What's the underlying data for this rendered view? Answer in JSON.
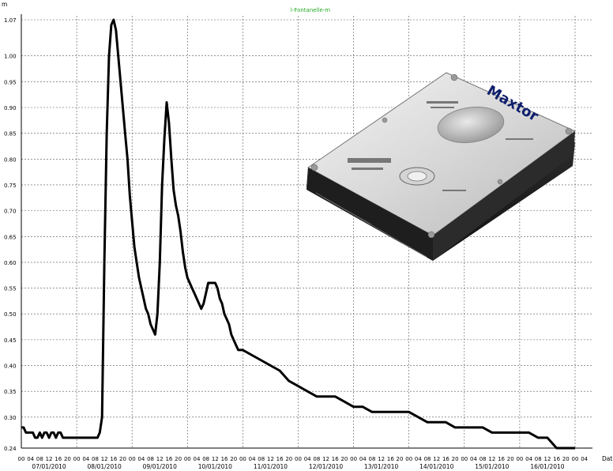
{
  "chart_data": {
    "type": "line",
    "title": "l-Fontanelle-m",
    "ylabel": "m",
    "xlabel": "Dat",
    "ylim": [
      0.24,
      1.07
    ],
    "yticks": [
      0.24,
      0.3,
      0.35,
      0.4,
      0.45,
      0.5,
      0.55,
      0.6,
      0.65,
      0.7,
      0.75,
      0.8,
      0.85,
      0.9,
      0.95,
      1.0,
      1.07
    ],
    "ytick_labels": [
      "0.24",
      "0.30",
      "0.35",
      "0.40",
      "0.45",
      "0.50",
      "0.55",
      "0.60",
      "0.65",
      "0.70",
      "0.75",
      "0.80",
      "0.85",
      "0.90",
      "0.95",
      "1.00",
      "1.07"
    ],
    "xlim_hours": [
      0,
      240
    ],
    "hour_tick_labels": [
      "00",
      "04",
      "08",
      "12",
      "16",
      "20",
      "00",
      "04",
      "08",
      "12",
      "16",
      "20",
      "00",
      "04",
      "08",
      "12",
      "16",
      "20",
      "00",
      "04",
      "08",
      "12",
      "16",
      "20",
      "00",
      "04",
      "08",
      "12",
      "16",
      "20",
      "00",
      "04",
      "08",
      "12",
      "16",
      "20",
      "00",
      "04",
      "08",
      "12",
      "16",
      "20",
      "00",
      "04",
      "08",
      "12",
      "16",
      "20",
      "00",
      "04",
      "08",
      "12",
      "16",
      "20",
      "00",
      "04",
      "08",
      "12",
      "16",
      "20",
      "00",
      "04",
      "08",
      "12",
      "16",
      "20"
    ],
    "date_labels": [
      "07/01/2010",
      "08/01/2010",
      "09/01/2010",
      "10/01/2010",
      "11/01/2010",
      "12/01/2010",
      "13/01/2010",
      "14/01/2010",
      "15/01/2010",
      "16/01/2010"
    ],
    "grid": true,
    "series": [
      {
        "color": "#000000",
        "x_hours": [
          0,
          1,
          2,
          3,
          4,
          5,
          6,
          7,
          8,
          9,
          10,
          11,
          12,
          13,
          14,
          15,
          16,
          17,
          18,
          19,
          20,
          21,
          22,
          23,
          24,
          25,
          26,
          27,
          28,
          29,
          30,
          31,
          32,
          33,
          34,
          35,
          36,
          37,
          38,
          39,
          40,
          41,
          42,
          43,
          44,
          45,
          46,
          47,
          48,
          49,
          50,
          51,
          52,
          53,
          54,
          55,
          56,
          57,
          58,
          59,
          60,
          61,
          62,
          63,
          64,
          65,
          66,
          67,
          68,
          69,
          70,
          71,
          72,
          73,
          74,
          75,
          76,
          77,
          78,
          79,
          80,
          81,
          82,
          83,
          84,
          85,
          86,
          87,
          88,
          89,
          90,
          91,
          92,
          93,
          94,
          95,
          96,
          100,
          104,
          108,
          112,
          116,
          120,
          124,
          128,
          132,
          136,
          140,
          144,
          148,
          152,
          156,
          160,
          164,
          168,
          172,
          176,
          180,
          184,
          188,
          192,
          196,
          200,
          204,
          208,
          212,
          216,
          220,
          224,
          228,
          232,
          236,
          240
        ],
        "values": [
          0.28,
          0.28,
          0.27,
          0.27,
          0.27,
          0.27,
          0.26,
          0.26,
          0.27,
          0.26,
          0.27,
          0.27,
          0.26,
          0.27,
          0.27,
          0.26,
          0.27,
          0.27,
          0.26,
          0.26,
          0.26,
          0.26,
          0.26,
          0.26,
          0.26,
          0.26,
          0.26,
          0.26,
          0.26,
          0.26,
          0.26,
          0.26,
          0.26,
          0.26,
          0.27,
          0.3,
          0.6,
          0.85,
          1.0,
          1.06,
          1.07,
          1.05,
          1.0,
          0.95,
          0.9,
          0.85,
          0.8,
          0.73,
          0.68,
          0.63,
          0.6,
          0.57,
          0.55,
          0.53,
          0.51,
          0.5,
          0.48,
          0.47,
          0.46,
          0.5,
          0.6,
          0.75,
          0.84,
          0.91,
          0.87,
          0.8,
          0.74,
          0.71,
          0.69,
          0.66,
          0.62,
          0.59,
          0.57,
          0.56,
          0.55,
          0.54,
          0.53,
          0.52,
          0.51,
          0.52,
          0.54,
          0.56,
          0.56,
          0.56,
          0.56,
          0.55,
          0.53,
          0.52,
          0.5,
          0.49,
          0.48,
          0.46,
          0.45,
          0.44,
          0.43,
          0.43,
          0.43,
          0.42,
          0.41,
          0.4,
          0.39,
          0.37,
          0.36,
          0.35,
          0.34,
          0.34,
          0.34,
          0.33,
          0.32,
          0.32,
          0.31,
          0.31,
          0.31,
          0.31,
          0.31,
          0.3,
          0.29,
          0.29,
          0.29,
          0.28,
          0.28,
          0.28,
          0.28,
          0.27,
          0.27,
          0.27,
          0.27,
          0.27,
          0.26,
          0.26,
          0.24,
          0.24,
          0.24
        ]
      }
    ]
  },
  "image": {
    "brand": "Maxtor",
    "description_icon": "hard-disk-drive-image"
  }
}
